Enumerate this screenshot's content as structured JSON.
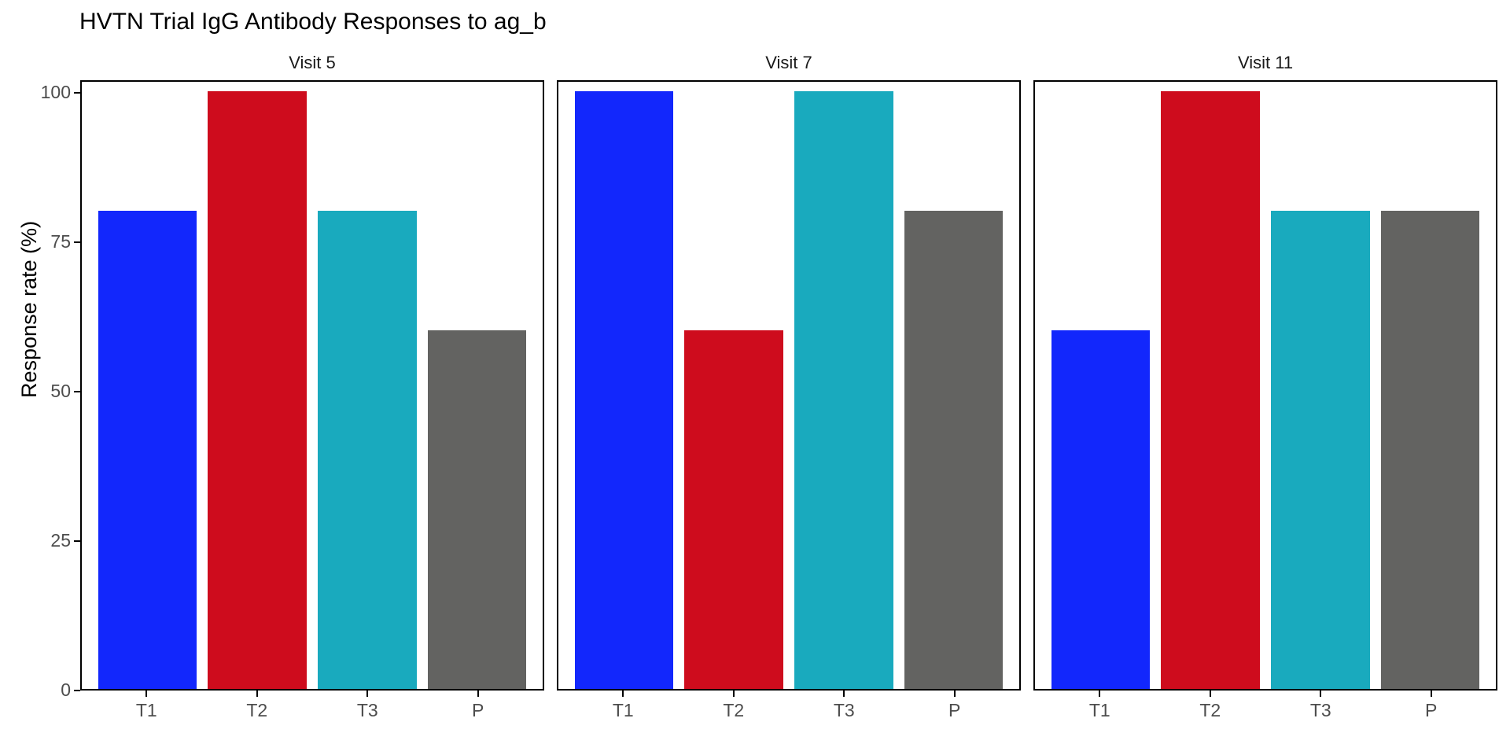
{
  "figure": {
    "title": "HVTN Trial IgG Antibody Responses to ag_b"
  },
  "chart_data": {
    "type": "bar",
    "title": "HVTN Trial IgG Antibody Responses to ag_b",
    "ylabel": "Response rate (%)",
    "xlabel": "",
    "categories": [
      "T1",
      "T2",
      "T3",
      "P"
    ],
    "facets": [
      {
        "label": "Visit 5",
        "values": [
          80,
          100,
          80,
          60
        ]
      },
      {
        "label": "Visit 7",
        "values": [
          100,
          60,
          100,
          80
        ]
      },
      {
        "label": "Visit 11",
        "values": [
          60,
          100,
          80,
          80
        ]
      }
    ],
    "bar_colors": [
      "#1227FC",
      "#CE0C1D",
      "#19AABE",
      "#636361"
    ],
    "ylim": [
      0,
      100
    ],
    "yticks": [
      0,
      25,
      50,
      75,
      100
    ],
    "grid": false,
    "legend": "none",
    "panel_border_color": "#000000",
    "axis_text_color": "#4D4D4D",
    "title_color": "#000000"
  }
}
